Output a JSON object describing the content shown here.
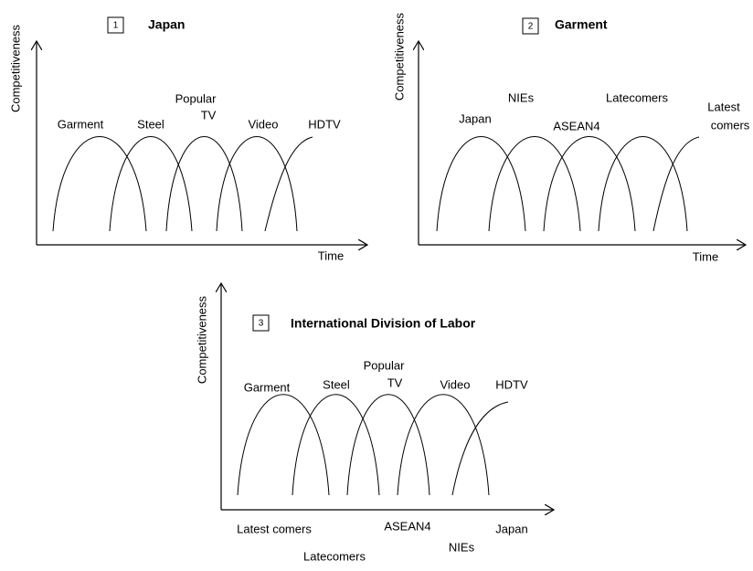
{
  "panels": [
    {
      "number": "1",
      "title": "Japan",
      "y_label": "Competitiveness",
      "x_label": "Time",
      "curve_labels": [
        "Garment",
        "Steel",
        "Popular",
        "TV",
        "Video",
        "HDTV"
      ]
    },
    {
      "number": "2",
      "title": "Garment",
      "y_label": "Competitiveness",
      "x_label": "Time",
      "curve_labels": [
        "Japan",
        "NIEs",
        "ASEAN4",
        "Latecomers",
        "Latest",
        "comers"
      ]
    },
    {
      "number": "3",
      "title": "International Division of Labor",
      "y_label": "Competitiveness",
      "curve_labels": [
        "Garment",
        "Steel",
        "Popular",
        "TV",
        "Video",
        "HDTV"
      ],
      "axis_labels": [
        "Latest comers",
        "ASEAN4",
        "Japan",
        "Latecomers",
        "NIEs"
      ]
    }
  ]
}
